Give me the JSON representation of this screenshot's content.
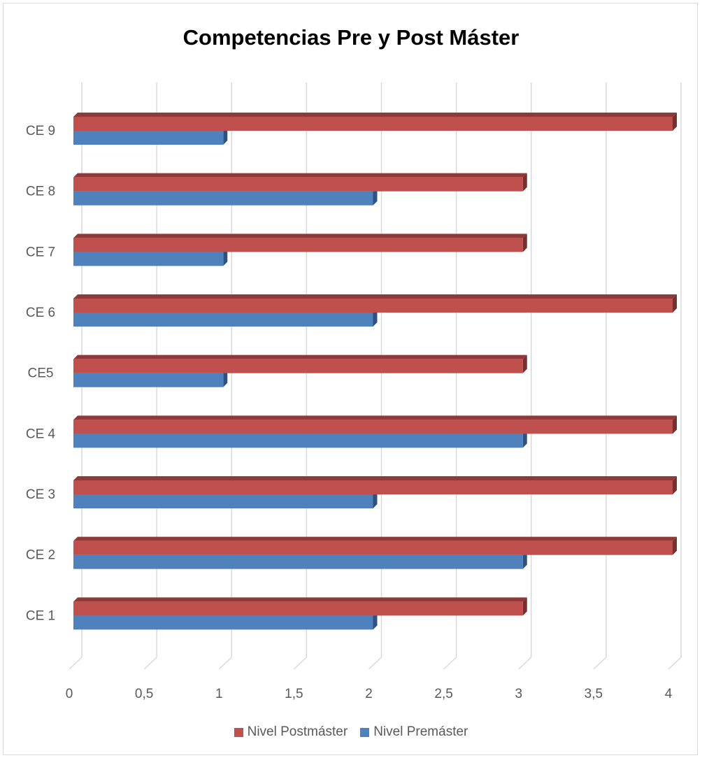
{
  "chart_data": {
    "type": "bar",
    "orientation": "horizontal",
    "title": "Competencias Pre y Post Máster",
    "categories": [
      "CE 1",
      "CE 2",
      "CE 3",
      "CE 4",
      "CE5",
      "CE 6",
      "CE 7",
      "CE 8",
      "CE 9"
    ],
    "series": [
      {
        "name": "Nivel Premáster",
        "color": "#4f81bd",
        "values": [
          2,
          3,
          2,
          3,
          1,
          2,
          1,
          2,
          1
        ]
      },
      {
        "name": "Nivel Postmáster",
        "color": "#c0504d",
        "values": [
          3,
          4,
          4,
          4,
          3,
          4,
          3,
          3,
          4
        ]
      }
    ],
    "xlim": [
      0,
      4
    ],
    "xticks": [
      "0",
      "0,5",
      "1",
      "1,5",
      "2",
      "2,5",
      "3",
      "3,5",
      "4"
    ],
    "grid": true,
    "legend_position": "bottom"
  }
}
